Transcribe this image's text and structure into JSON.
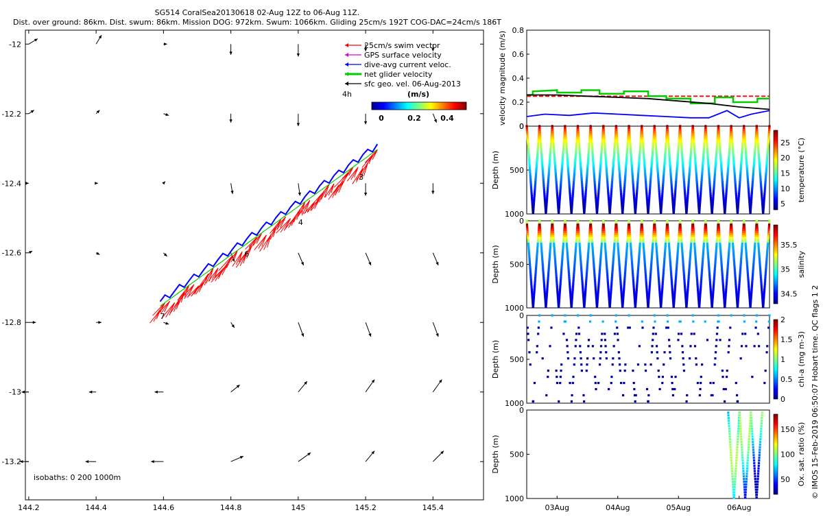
{
  "header": {
    "title": "SG514 CoralSea20130618 02-Aug 12Z to 06-Aug 11Z.",
    "subtitle": "Dist. over ground: 86km. Dist. swum: 86km. Mission DOG: 972km. Swum: 1066km. Gliding 25cm/s 192T COG-DAC=24cm/s 186T"
  },
  "side_note": "© IMOS 15-Feb-2019 06:50:07 Hobart time. QC flags 1  2",
  "colors": {
    "swim": "#ff0000",
    "gps": "#d400d4",
    "dac": "#0000ff",
    "net": "#00cc00",
    "sfc": "#000000",
    "colormap": [
      "#00008f",
      "#0000ff",
      "#0080ff",
      "#00ffff",
      "#80ff80",
      "#ffff00",
      "#ff8000",
      "#ff0000",
      "#800000"
    ]
  },
  "chart_data": [
    {
      "type": "map-vector",
      "x_ticks": [
        "144.2",
        "144.4",
        "144.6",
        "144.8",
        "145",
        "145.2",
        "145.4"
      ],
      "y_ticks": [
        "-12",
        "-12.2",
        "-12.4",
        "-12.6",
        "-12.8",
        "-13",
        "-13.2"
      ],
      "xlim": [
        144.19,
        145.55
      ],
      "ylim": [
        -13.31,
        -11.96
      ],
      "legend": [
        {
          "label": "25cm/s swim vector",
          "color_key": "swim"
        },
        {
          "label": "GPS surface velocity",
          "color_key": "gps"
        },
        {
          "label": "dive-avg current veloc.",
          "color_key": "dac"
        },
        {
          "label": "net glider velocity",
          "color_key": "net"
        },
        {
          "label": "sfc geo. vel. 06-Aug-2013",
          "color_key": "sfc"
        }
      ],
      "colorbar": {
        "title": "(m/s)",
        "ticks": [
          "0",
          "0.2",
          "0.4"
        ],
        "range": [
          0,
          0.5
        ]
      },
      "scale_label": "4h",
      "isobaths_label": "isobaths: 0    200   1000m",
      "track_labels": [
        {
          "text": "7",
          "lon": 144.59,
          "lat": -12.79
        },
        {
          "text": "6",
          "lon": 144.84,
          "lat": -12.61
        },
        {
          "text": "4",
          "lon": 145.0,
          "lat": -12.52
        },
        {
          "text": "3",
          "lon": 145.18,
          "lat": -12.39
        }
      ],
      "track": {
        "start": [
          144.59,
          -12.765
        ],
        "end": [
          145.235,
          -12.315
        ]
      },
      "geo_vectors": {
        "lons": [
          144.2,
          144.4,
          144.6,
          144.8,
          145.0,
          145.2,
          145.4
        ],
        "lats": [
          -12.0,
          -12.2,
          -12.4,
          -12.6,
          -12.8,
          -13.0,
          -13.2
        ],
        "u": [
          [
            0.1,
            0.06,
            0.04,
            0.0,
            0.0,
            0.0,
            0.0
          ],
          [
            0.06,
            0.04,
            0.06,
            0.0,
            0.0,
            0.0,
            0.04
          ],
          [
            0.0,
            0.02,
            0.02,
            0.02,
            0.02,
            0.0,
            0.0
          ],
          [
            0.04,
            0.04,
            0.04,
            0.04,
            0.06,
            0.06,
            0.06
          ],
          [
            0.08,
            0.06,
            0.06,
            0.04,
            0.06,
            0.06,
            0.06
          ],
          [
            -0.08,
            -0.08,
            -0.1,
            0.1,
            0.1,
            0.1,
            0.1
          ],
          [
            -0.1,
            -0.12,
            -0.14,
            0.14,
            0.14,
            0.1,
            0.12
          ]
        ],
        "v": [
          [
            0.06,
            0.1,
            0.0,
            -0.12,
            -0.14,
            -0.08,
            -0.08
          ],
          [
            0.04,
            0.04,
            -0.02,
            -0.1,
            -0.14,
            -0.12,
            -0.1
          ],
          [
            0.0,
            0.0,
            0.02,
            -0.12,
            -0.14,
            -0.14,
            -0.12
          ],
          [
            0.02,
            -0.02,
            -0.04,
            -0.1,
            -0.14,
            -0.14,
            -0.14
          ],
          [
            0.0,
            0.0,
            -0.02,
            -0.06,
            -0.16,
            -0.16,
            -0.16
          ],
          [
            0.0,
            0.0,
            0.0,
            0.08,
            0.12,
            0.14,
            0.14
          ],
          [
            0.0,
            0.0,
            0.0,
            0.06,
            0.1,
            0.12,
            0.12
          ]
        ]
      }
    },
    {
      "type": "line",
      "ylabel": "velocity magnitude (m/s)",
      "ylim": [
        0,
        0.8
      ],
      "y_ticks": [
        "0",
        "0.2",
        "0.4",
        "0.6",
        "0.8"
      ],
      "xlim": [
        2.5,
        6.5
      ],
      "series": [
        {
          "color_key": "swim",
          "x": [
            2.5,
            6.5
          ],
          "y": [
            0.25,
            0.25
          ],
          "dashed": true
        },
        {
          "color_key": "net",
          "x": [
            2.5,
            2.6,
            2.6,
            3.0,
            3.0,
            3.4,
            3.4,
            3.7,
            3.7,
            4.1,
            4.1,
            4.5,
            4.5,
            4.8,
            4.8,
            5.2,
            5.2,
            5.6,
            5.6,
            5.9,
            5.9,
            6.3,
            6.3,
            6.5
          ],
          "y": [
            0.26,
            0.26,
            0.29,
            0.3,
            0.28,
            0.28,
            0.3,
            0.3,
            0.27,
            0.27,
            0.29,
            0.29,
            0.25,
            0.25,
            0.23,
            0.23,
            0.19,
            0.19,
            0.24,
            0.24,
            0.2,
            0.2,
            0.23,
            0.23
          ]
        },
        {
          "color_key": "dac",
          "x": [
            2.5,
            2.8,
            3.2,
            3.6,
            4.0,
            4.4,
            4.8,
            5.2,
            5.5,
            5.8,
            6.0,
            6.2,
            6.5
          ],
          "y": [
            0.08,
            0.1,
            0.09,
            0.11,
            0.1,
            0.09,
            0.08,
            0.07,
            0.07,
            0.13,
            0.07,
            0.1,
            0.13
          ]
        },
        {
          "color_key": "sfc",
          "x": [
            2.5,
            3.0,
            3.5,
            4.0,
            4.5,
            5.0,
            5.5,
            6.0,
            6.5
          ],
          "y": [
            0.26,
            0.26,
            0.25,
            0.24,
            0.23,
            0.21,
            0.19,
            0.16,
            0.14
          ]
        }
      ]
    },
    {
      "type": "scatter",
      "ylabel": "Depth (m)",
      "cbar_label": "temperature (°C)",
      "ylim": [
        1000,
        0
      ],
      "y_ticks": [
        "0",
        "500",
        "1000"
      ],
      "cbar_ticks": [
        "5",
        "10",
        "15",
        "20",
        "25"
      ],
      "cbar_range": [
        3,
        29
      ],
      "profile": "temperature",
      "x_start": 2.5,
      "x_end": 6.5,
      "n_dives": 19,
      "depth_min": 0,
      "depth_max": 1000,
      "step": 22
    },
    {
      "type": "scatter",
      "ylabel": "Depth (m)",
      "cbar_label": "salinity",
      "ylim": [
        1000,
        0
      ],
      "y_ticks": [
        "0",
        "500",
        "1000"
      ],
      "cbar_ticks": [
        "34.5",
        "35",
        "35.5"
      ],
      "cbar_range": [
        34.3,
        35.9
      ],
      "profile": "salinity",
      "x_start": 2.5,
      "x_end": 6.5,
      "n_dives": 19,
      "depth_min": 0,
      "depth_max": 1000,
      "step": 22
    },
    {
      "type": "scatter",
      "ylabel": "Depth (m)",
      "cbar_label": "chl-a (mg m-3)",
      "ylim": [
        1000,
        0
      ],
      "y_ticks": [
        "0",
        "500",
        "1000"
      ],
      "cbar_ticks": [
        "0",
        "0.5",
        "1",
        "1.5",
        "2"
      ],
      "cbar_range": [
        0,
        2
      ],
      "profile": "chl",
      "x_start": 2.5,
      "x_end": 6.5,
      "n_dives": 19,
      "depth_min": 0,
      "depth_max": 1000,
      "step": 70
    },
    {
      "type": "scatter",
      "ylabel": "Depth (m)",
      "cbar_label": "Ox. sat. ratio (%)",
      "ylim": [
        1000,
        0
      ],
      "y_ticks": [
        "0",
        "500",
        "1000"
      ],
      "cbar_ticks": [
        "50",
        "100",
        "150"
      ],
      "cbar_range": [
        20,
        180
      ],
      "profile": "oxygen",
      "x_start": 5.82,
      "x_end": 6.38,
      "n_dives": 3,
      "depth_min": 30,
      "depth_max": 1000,
      "step": 30,
      "x_ticks": [
        "03Aug",
        "04Aug",
        "05Aug",
        "06Aug"
      ],
      "x_tick_values": [
        3,
        4,
        5,
        6
      ]
    }
  ]
}
